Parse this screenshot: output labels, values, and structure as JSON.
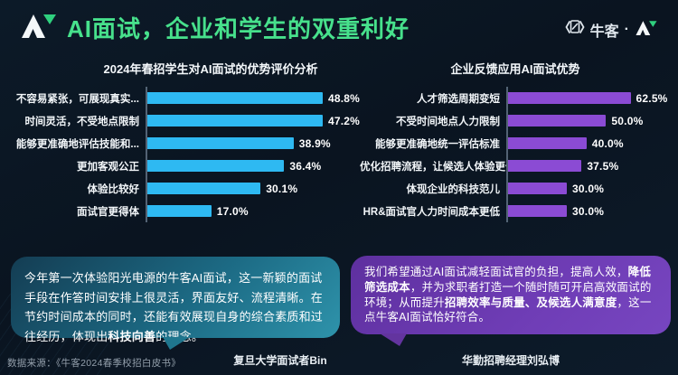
{
  "header": {
    "title": "AI面试，企业和学生的双重利好",
    "brand_name": "牛客",
    "brand_separator": "·"
  },
  "accent_colors": {
    "title_green": "#47e18c",
    "student_bar_cyan": "#2eb9f2",
    "company_bar_purple": "#8b4bd4",
    "quote_left_teal": "#1c6a84",
    "quote_right_purple": "#6f3db6"
  },
  "chart_data": [
    {
      "type": "bar",
      "orientation": "horizontal",
      "title": "2024年春招学生对AI面试的优势评价分析",
      "bar_color": "#2eb9f2",
      "scale_max": 56.5,
      "value_suffix": "%",
      "categories": [
        "不容易紧张，可展现真实...",
        "时间灵活，不受地点限制",
        "能够更准确地评估技能和...",
        "更加客观公正",
        "体验比较好",
        "面试官更得体"
      ],
      "values": [
        48.8,
        47.2,
        38.9,
        36.4,
        30.1,
        17.0
      ]
    },
    {
      "type": "bar",
      "orientation": "horizontal",
      "title": "企业反馈应用AI面试优势",
      "bar_color": "#8b4bd4",
      "scale_max": 83,
      "value_suffix": "%",
      "categories": [
        "人才筛选周期变短",
        "不受时间地点人力限制",
        "能够更准确地统一评估标准",
        "优化招聘流程，让候选人体验更佳",
        "体现企业的科技范儿",
        "HR&面试官人力时间成本更低"
      ],
      "values": [
        62.5,
        50.0,
        40.0,
        37.5,
        30.0,
        30.0
      ]
    }
  ],
  "quotes": [
    {
      "segments": [
        {
          "text": "今年第一次体验阳光电源的牛客AI面试，这一新颖的面试手段在作答时间安排上很灵活，界面友好、流程清晰。在节约时间成本的同时，还能有效展现自身的综合素质和过往经历，体现出",
          "bold": false
        },
        {
          "text": "科技向善",
          "bold": true
        },
        {
          "text": "的理念。",
          "bold": false
        }
      ],
      "attribution": "复旦大学面试者Bin"
    },
    {
      "segments": [
        {
          "text": "我们希望通过AI面试减轻面试官的负担，提高人效，",
          "bold": false
        },
        {
          "text": "降低筛选成本",
          "bold": true
        },
        {
          "text": "，并为求职者打造一个随时随可开启高效面试的环境；从而提升",
          "bold": false
        },
        {
          "text": "招聘效率与质量、及候选人满意度",
          "bold": true
        },
        {
          "text": "，这一点牛客AI面试恰好符合。",
          "bold": false
        }
      ],
      "attribution": "华勤招聘经理刘弘博"
    }
  ],
  "footer": {
    "source": "数据来源：《牛客2024春季校招白皮书》"
  }
}
